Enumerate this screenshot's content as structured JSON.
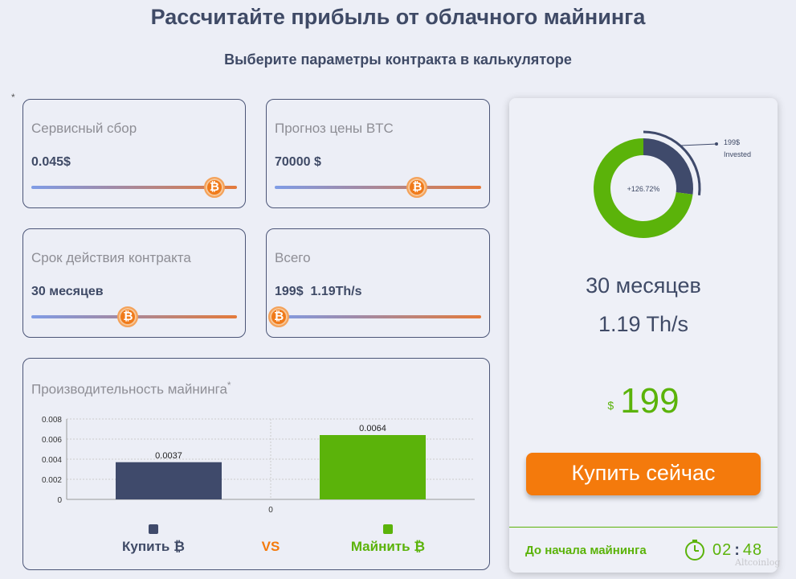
{
  "header": {
    "title": "Рассчитайте прибыль от облачного майнинга",
    "subtitle": "Выберите параметры контракта в калькуляторе",
    "star": "*"
  },
  "cards": {
    "fee": {
      "label": "Сервисный сбор",
      "value": "0.045$",
      "level": 0.89
    },
    "btc_forecast": {
      "label": "Прогноз цены BTC",
      "value": "70000 $",
      "level": 0.69
    },
    "term": {
      "label": "Срок действия контракта",
      "value": "30 месяцев",
      "level": 0.47
    },
    "total": {
      "label": "Всего",
      "value": "199$  1.19Th/s",
      "level": 0.02
    }
  },
  "knob_glyph": "₿",
  "performance": {
    "label": "Производительность майнинга",
    "star": "*",
    "legend_buy": "Купить ₿",
    "legend_vs": "VS",
    "legend_mine": "Майнить ₿"
  },
  "chart_data": {
    "type": "bar",
    "categories": [
      "Купить ₿",
      "Майнить ₿"
    ],
    "values": [
      0.0037,
      0.0064
    ],
    "value_labels": [
      "0.0037",
      "0.0064"
    ],
    "x_tick": "0",
    "ylim": [
      0,
      0.008
    ],
    "yticks": [
      "0",
      "0.002",
      "0.004",
      "0.006",
      "0.008"
    ],
    "grid": true,
    "colors": [
      "#3f4a6b",
      "#5bb30a"
    ]
  },
  "donut": {
    "center": "+126.72%",
    "invested_amount": "199$",
    "invested_label": "Invested",
    "invested_fraction": 0.27,
    "colors": {
      "invested": "#3f4a6b",
      "profit": "#5bb30a"
    }
  },
  "summary": {
    "months": "30 месяцев",
    "hashrate": "1.19 Th/s",
    "currency": "$",
    "price": "199",
    "buy_button": "Купить сейчас",
    "timer_label": "До начала майнинга",
    "timer_min": "02",
    "timer_sep": ":",
    "timer_sec": "48"
  },
  "watermark": "Altcoinlog"
}
